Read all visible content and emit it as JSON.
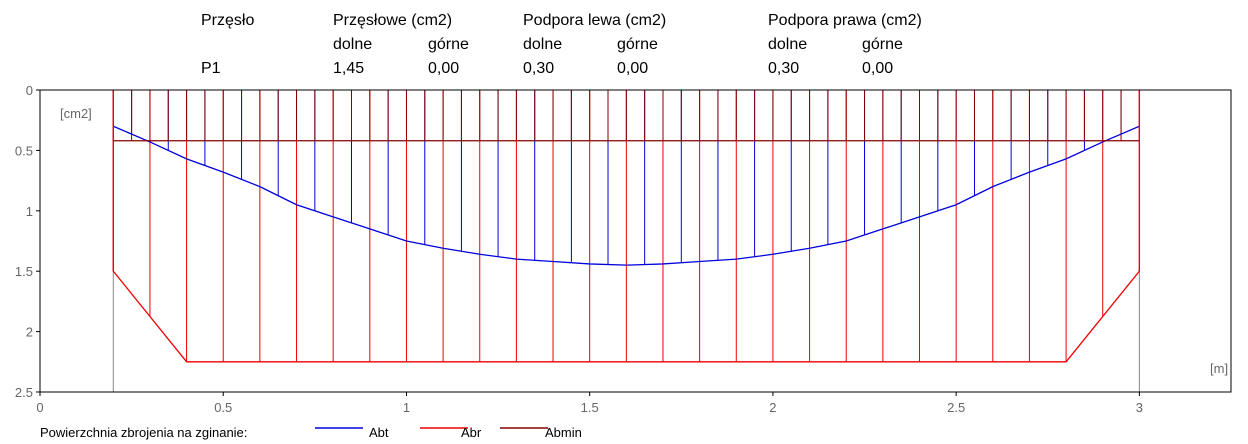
{
  "header": {
    "span_title": "Przęsło",
    "span_value": "P1",
    "span_reinf_title": "Przęsłowe (cm2)",
    "left_support_title": "Podpora lewa (cm2)",
    "right_support_title": "Podpora prawa (cm2)",
    "bottom_label": "dolne",
    "top_label": "górne",
    "span_bottom": "1,45",
    "span_top": "0,00",
    "left_bottom": "0,30",
    "left_top": "0,00",
    "right_bottom": "0,30",
    "right_top": "0,00"
  },
  "chart_data": {
    "type": "line",
    "y_unit_label": "[cm2]",
    "x_unit_label": "[m]",
    "xlim": [
      0,
      3.25
    ],
    "ylim": [
      0,
      2.5
    ],
    "y_inverted": true,
    "x_ticks": [
      "0",
      "0.5",
      "1",
      "1.5",
      "2",
      "2.5",
      "3"
    ],
    "y_ticks": [
      "0",
      "0.5",
      "1",
      "1.5",
      "2",
      "2.5"
    ],
    "grid": false,
    "series": [
      {
        "name": "Abt",
        "color": "#0000dd",
        "x": [
          0.2,
          0.3,
          0.4,
          0.5,
          0.6,
          0.7,
          0.8,
          0.9,
          1.0,
          1.1,
          1.2,
          1.3,
          1.4,
          1.5,
          1.6,
          1.7,
          1.8,
          1.9,
          2.0,
          2.1,
          2.2,
          2.3,
          2.4,
          2.5,
          2.6,
          2.7,
          2.8,
          2.9,
          3.0
        ],
        "y": [
          0.3,
          0.43,
          0.57,
          0.68,
          0.8,
          0.95,
          1.05,
          1.15,
          1.25,
          1.31,
          1.36,
          1.4,
          1.42,
          1.44,
          1.45,
          1.44,
          1.42,
          1.4,
          1.36,
          1.31,
          1.25,
          1.15,
          1.05,
          0.95,
          0.8,
          0.68,
          0.57,
          0.43,
          0.3
        ]
      },
      {
        "name": "Abr",
        "color": "#ee0000",
        "x": [
          0.2,
          0.2,
          0.4,
          2.8,
          3.0,
          3.0
        ],
        "y": [
          0,
          1.5,
          2.25,
          2.25,
          1.5,
          0
        ]
      },
      {
        "name": "Abmin",
        "color": "#880000",
        "x": [
          0.2,
          3.0
        ],
        "y": [
          0.42,
          0.42
        ]
      }
    ],
    "legend_title": "Powierzchnia zbrojenia na zginanie:",
    "legend_position": "bottom-left"
  }
}
